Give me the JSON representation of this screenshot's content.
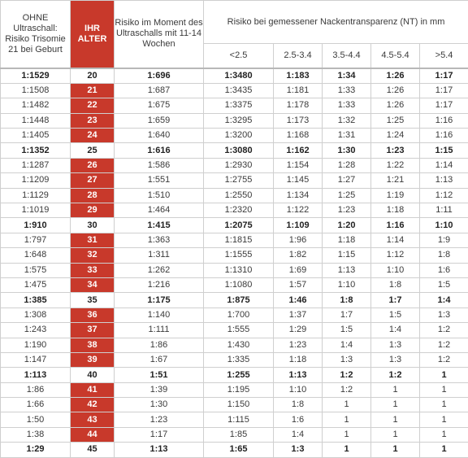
{
  "headers": {
    "ohne": "OHNE Ultraschall: Risiko Trisomie 21 bei Geburt",
    "alter": "IHR ALTER",
    "moment": "Risiko im Moment des Ultraschalls mit 11-14 Wochen",
    "nt_group": "Risiko bei gemessener Nackentransparenz (NT) in mm",
    "nt_cols": [
      "<2.5",
      "2.5-3.4",
      "3.5-4.4",
      "4.5-5.4",
      ">5.4"
    ]
  },
  "rows": [
    {
      "ohne": "1:1529",
      "age": "20",
      "moment": "1:696",
      "nt": [
        "1:3480",
        "1:183",
        "1:34",
        "1:26",
        "1:17"
      ],
      "bold": true
    },
    {
      "ohne": "1:1508",
      "age": "21",
      "moment": "1:687",
      "nt": [
        "1:3435",
        "1:181",
        "1:33",
        "1:26",
        "1:17"
      ],
      "bold": false
    },
    {
      "ohne": "1:1482",
      "age": "22",
      "moment": "1:675",
      "nt": [
        "1:3375",
        "1:178",
        "1:33",
        "1:26",
        "1:17"
      ],
      "bold": false
    },
    {
      "ohne": "1:1448",
      "age": "23",
      "moment": "1:659",
      "nt": [
        "1:3295",
        "1:173",
        "1:32",
        "1:25",
        "1:16"
      ],
      "bold": false
    },
    {
      "ohne": "1:1405",
      "age": "24",
      "moment": "1:640",
      "nt": [
        "1:3200",
        "1:168",
        "1:31",
        "1:24",
        "1:16"
      ],
      "bold": false
    },
    {
      "ohne": "1:1352",
      "age": "25",
      "moment": "1:616",
      "nt": [
        "1:3080",
        "1:162",
        "1:30",
        "1:23",
        "1:15"
      ],
      "bold": true
    },
    {
      "ohne": "1:1287",
      "age": "26",
      "moment": "1:586",
      "nt": [
        "1:2930",
        "1:154",
        "1:28",
        "1:22",
        "1:14"
      ],
      "bold": false
    },
    {
      "ohne": "1:1209",
      "age": "27",
      "moment": "1:551",
      "nt": [
        "1:2755",
        "1:145",
        "1:27",
        "1:21",
        "1:13"
      ],
      "bold": false
    },
    {
      "ohne": "1:1129",
      "age": "28",
      "moment": "1:510",
      "nt": [
        "1:2550",
        "1:134",
        "1:25",
        "1:19",
        "1:12"
      ],
      "bold": false
    },
    {
      "ohne": "1:1019",
      "age": "29",
      "moment": "1:464",
      "nt": [
        "1:2320",
        "1:122",
        "1:23",
        "1:18",
        "1:11"
      ],
      "bold": false
    },
    {
      "ohne": "1:910",
      "age": "30",
      "moment": "1:415",
      "nt": [
        "1:2075",
        "1:109",
        "1:20",
        "1:16",
        "1:10"
      ],
      "bold": true
    },
    {
      "ohne": "1:797",
      "age": "31",
      "moment": "1:363",
      "nt": [
        "1:1815",
        "1:96",
        "1:18",
        "1:14",
        "1:9"
      ],
      "bold": false
    },
    {
      "ohne": "1:648",
      "age": "32",
      "moment": "1:311",
      "nt": [
        "1:1555",
        "1:82",
        "1:15",
        "1:12",
        "1:8"
      ],
      "bold": false
    },
    {
      "ohne": "1:575",
      "age": "33",
      "moment": "1:262",
      "nt": [
        "1:1310",
        "1:69",
        "1:13",
        "1:10",
        "1:6"
      ],
      "bold": false
    },
    {
      "ohne": "1:475",
      "age": "34",
      "moment": "1:216",
      "nt": [
        "1:1080",
        "1:57",
        "1:10",
        "1:8",
        "1:5"
      ],
      "bold": false
    },
    {
      "ohne": "1:385",
      "age": "35",
      "moment": "1:175",
      "nt": [
        "1:875",
        "1:46",
        "1:8",
        "1:7",
        "1:4"
      ],
      "bold": true
    },
    {
      "ohne": "1:308",
      "age": "36",
      "moment": "1:140",
      "nt": [
        "1:700",
        "1:37",
        "1:7",
        "1:5",
        "1:3"
      ],
      "bold": false
    },
    {
      "ohne": "1:243",
      "age": "37",
      "moment": "1:111",
      "nt": [
        "1:555",
        "1:29",
        "1:5",
        "1:4",
        "1:2"
      ],
      "bold": false
    },
    {
      "ohne": "1:190",
      "age": "38",
      "moment": "1:86",
      "nt": [
        "1:430",
        "1:23",
        "1:4",
        "1:3",
        "1:2"
      ],
      "bold": false
    },
    {
      "ohne": "1:147",
      "age": "39",
      "moment": "1:67",
      "nt": [
        "1:335",
        "1:18",
        "1:3",
        "1:3",
        "1:2"
      ],
      "bold": false
    },
    {
      "ohne": "1:113",
      "age": "40",
      "moment": "1:51",
      "nt": [
        "1:255",
        "1:13",
        "1:2",
        "1:2",
        "1"
      ],
      "bold": true
    },
    {
      "ohne": "1:86",
      "age": "41",
      "moment": "1:39",
      "nt": [
        "1:195",
        "1:10",
        "1:2",
        "1",
        "1"
      ],
      "bold": false
    },
    {
      "ohne": "1:66",
      "age": "42",
      "moment": "1:30",
      "nt": [
        "1:150",
        "1:8",
        "1",
        "1",
        "1"
      ],
      "bold": false
    },
    {
      "ohne": "1:50",
      "age": "43",
      "moment": "1:23",
      "nt": [
        "1:115",
        "1:6",
        "1",
        "1",
        "1"
      ],
      "bold": false
    },
    {
      "ohne": "1:38",
      "age": "44",
      "moment": "1:17",
      "nt": [
        "1:85",
        "1:4",
        "1",
        "1",
        "1"
      ],
      "bold": false
    },
    {
      "ohne": "1:29",
      "age": "45",
      "moment": "1:13",
      "nt": [
        "1:65",
        "1:3",
        "1",
        "1",
        "1"
      ],
      "bold": true
    }
  ],
  "colors": {
    "accent": "#c8392b",
    "border": "#cfcfcf",
    "text": "#3a3a3a"
  }
}
